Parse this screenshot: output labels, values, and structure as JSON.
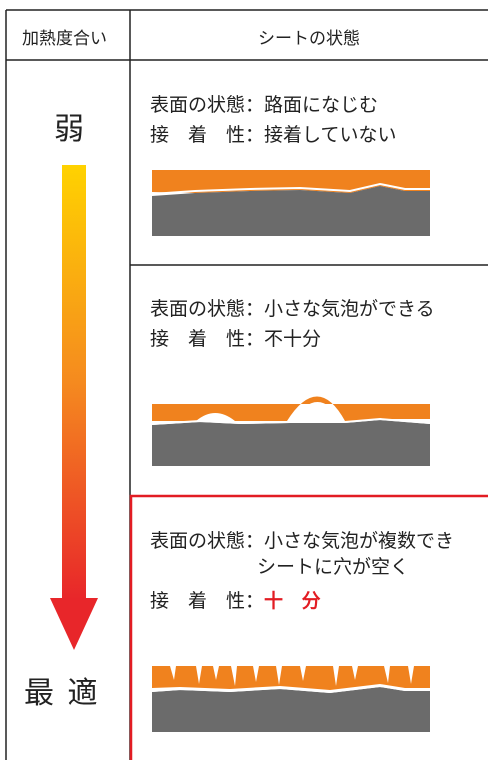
{
  "header": {
    "col1": "加熱度合い",
    "col2": "シートの状態"
  },
  "scale": {
    "top_label": "弱",
    "bottom_label": "最 適"
  },
  "rows": [
    {
      "surface_label": "表面の状態：",
      "surface_value": "路面になじむ",
      "adhesion_label": "接　着　性：",
      "adhesion_value": "接着していない"
    },
    {
      "surface_label": "表面の状態：",
      "surface_value": "小さな気泡ができる",
      "adhesion_label": "接　着　性：",
      "adhesion_value": "不十分"
    },
    {
      "surface_label": "表面の状態：",
      "surface_value_line1": "小さな気泡が複数でき",
      "surface_value_line2": "シートに穴が空く",
      "adhesion_label": "接　着　性：",
      "adhesion_value": "十 分"
    }
  ],
  "colors": {
    "sheet_orange": "#f0821e",
    "road_gray": "#6b6b6b",
    "highlight_red": "#e21c23",
    "arrow_top": "#ffd200",
    "arrow_bottom": "#e8262a"
  }
}
